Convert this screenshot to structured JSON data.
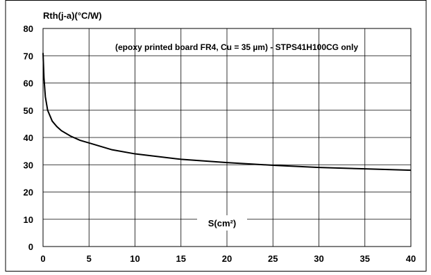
{
  "chart_data": {
    "type": "line",
    "ylabel": "Rth(j-a)(°C/W)",
    "xlabel": "S(cm²)",
    "annotation": "(epoxy printed board FR4, Cu = 35 µm) - STPS41H100CG only",
    "xlim": [
      0,
      40
    ],
    "ylim": [
      0,
      80
    ],
    "x_ticks": [
      "0",
      "5",
      "10",
      "15",
      "20",
      "25",
      "30",
      "35",
      "40"
    ],
    "y_ticks": [
      "0",
      "10",
      "20",
      "30",
      "40",
      "50",
      "60",
      "70",
      "80"
    ],
    "grid": true,
    "series": [
      {
        "x": [
          0,
          0.1,
          0.25,
          0.5,
          1,
          1.5,
          2,
          3,
          4,
          5,
          7.5,
          10,
          15,
          20,
          25,
          30,
          35,
          40
        ],
        "values": [
          71,
          62,
          55,
          50,
          46,
          44,
          42.5,
          40.5,
          39,
          38,
          35.5,
          34,
          32,
          30.8,
          29.8,
          29,
          28.5,
          28
        ]
      }
    ]
  }
}
